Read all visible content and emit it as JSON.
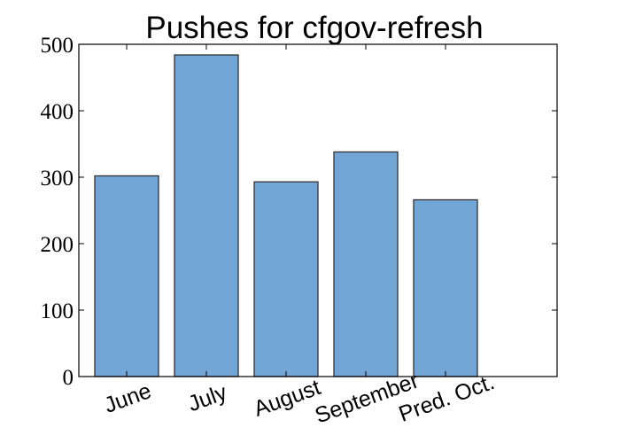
{
  "chart_data": {
    "type": "bar",
    "title": "Pushes for cfgov-refresh",
    "xlabel": "",
    "ylabel": "",
    "categories": [
      "June",
      "July",
      "August",
      "September",
      "Pred. Oct."
    ],
    "values": [
      302,
      484,
      293,
      338,
      266
    ],
    "ylim": [
      0,
      500
    ],
    "yticks": [
      "0",
      "100",
      "200",
      "300",
      "400",
      "500"
    ],
    "grid": false,
    "bar_color": "#72a6d6",
    "bar_edge_color": "#333333",
    "x_tick_rotation_deg": -20
  }
}
